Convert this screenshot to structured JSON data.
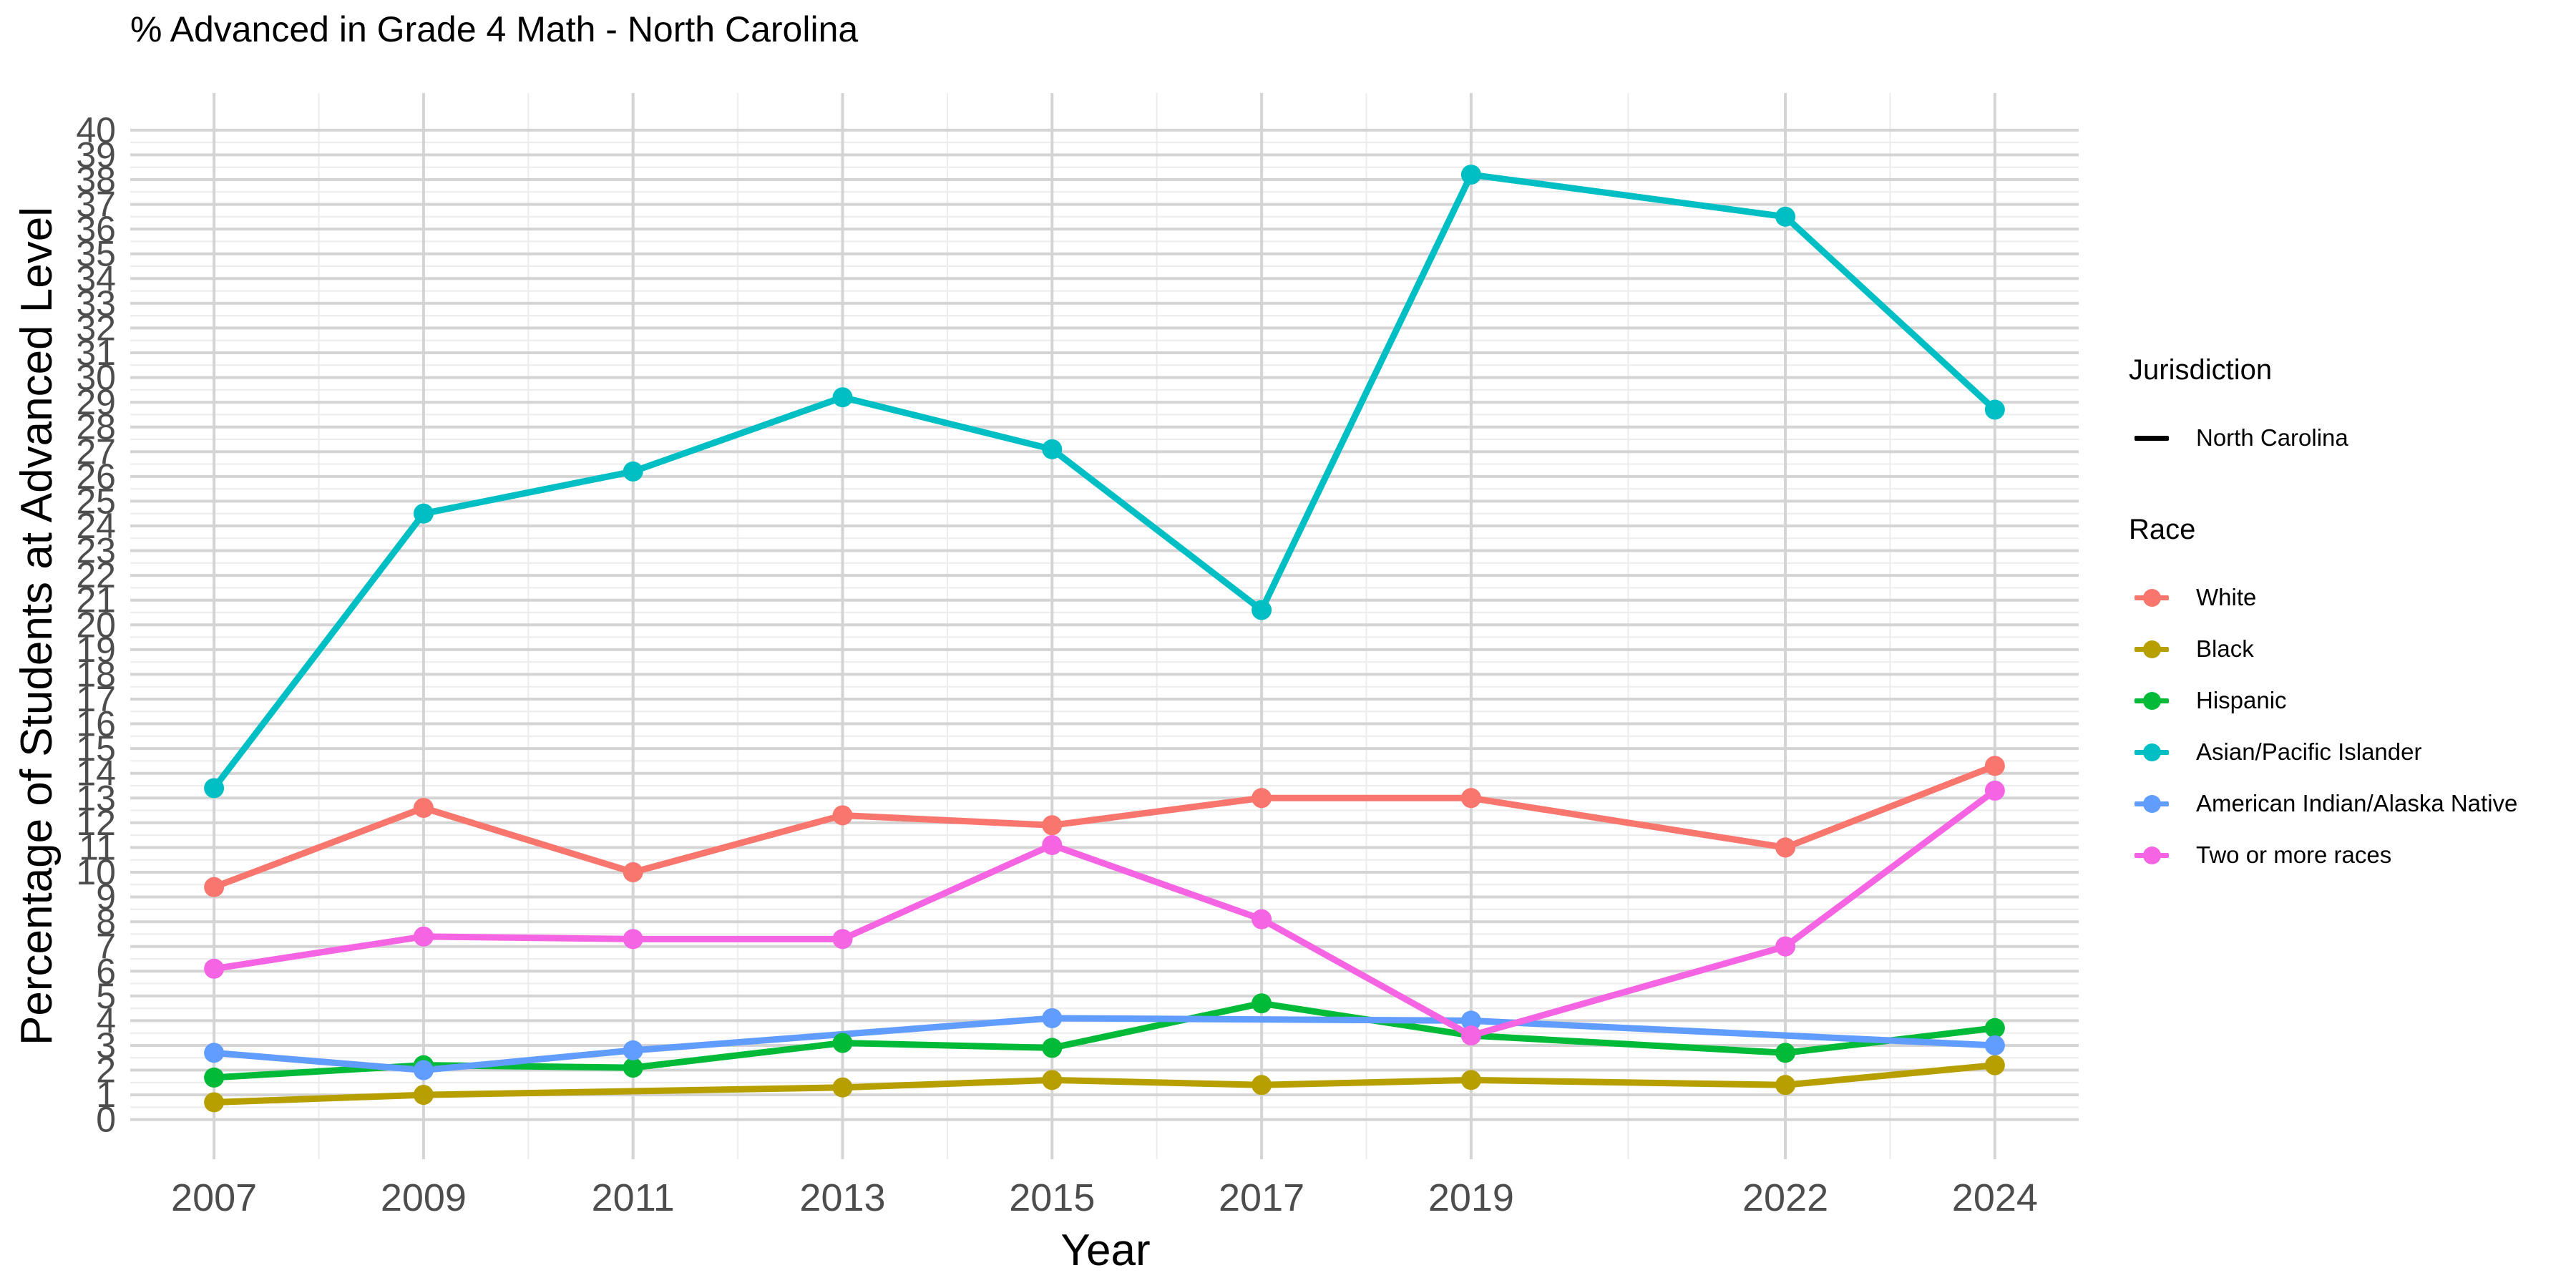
{
  "chart_data": {
    "type": "line",
    "title": "% Advanced in Grade 4 Math - North Carolina",
    "xlabel": "Year",
    "ylabel": "Percentage of Students at Advanced Level",
    "x": [
      2007,
      2009,
      2011,
      2013,
      2015,
      2017,
      2019,
      2022,
      2024
    ],
    "x_ticks": [
      "2007",
      "2009",
      "2011",
      "2013",
      "2015",
      "2017",
      "2019",
      "2022",
      "2024"
    ],
    "xlim": [
      2006.2,
      2024.8
    ],
    "ylim": [
      -1.6,
      41.5
    ],
    "y_ticks": [
      0,
      1,
      2,
      3,
      4,
      5,
      6,
      7,
      8,
      9,
      10,
      11,
      12,
      13,
      14,
      15,
      16,
      17,
      18,
      19,
      20,
      21,
      22,
      23,
      24,
      25,
      26,
      27,
      28,
      29,
      30,
      31,
      32,
      33,
      34,
      35,
      36,
      37,
      38,
      39,
      40
    ],
    "grid": true,
    "legend_position": "right",
    "legend": {
      "jurisdiction_title": "Jurisdiction",
      "jurisdiction_items": [
        {
          "name": "North Carolina",
          "color": "#000000"
        }
      ],
      "race_title": "Race"
    },
    "series": [
      {
        "name": "White",
        "color": "#F8766D",
        "values": [
          9.4,
          12.6,
          10.0,
          12.3,
          11.9,
          13.0,
          13.0,
          11.0,
          14.3
        ]
      },
      {
        "name": "Black",
        "color": "#B79F00",
        "values": [
          0.7,
          1.0,
          null,
          1.3,
          1.6,
          1.4,
          1.6,
          1.4,
          2.2
        ]
      },
      {
        "name": "Hispanic",
        "color": "#00BA38",
        "values": [
          1.7,
          2.2,
          2.1,
          3.1,
          2.9,
          4.7,
          3.4,
          2.7,
          3.7
        ]
      },
      {
        "name": "Asian/Pacific Islander",
        "color": "#00BFC4",
        "values": [
          13.4,
          24.5,
          26.2,
          29.2,
          27.1,
          20.6,
          38.2,
          36.5,
          28.7
        ]
      },
      {
        "name": "American Indian/Alaska Native",
        "color": "#619CFF",
        "values": [
          2.7,
          2.0,
          2.8,
          null,
          4.1,
          null,
          4.0,
          null,
          3.0
        ]
      },
      {
        "name": "Two or more races",
        "color": "#F564E3",
        "values": [
          6.1,
          7.4,
          7.3,
          7.3,
          11.1,
          8.1,
          3.4,
          7.0,
          13.3
        ]
      }
    ]
  }
}
